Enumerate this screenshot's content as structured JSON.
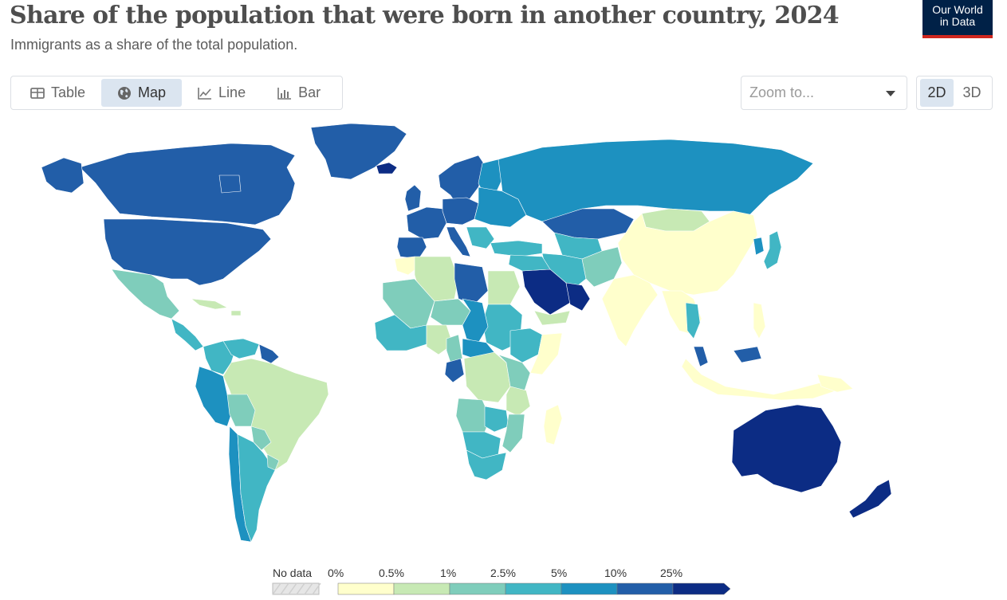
{
  "header": {
    "title": "Share of the population that were born in another country, 2024",
    "subtitle": "Immigrants as a share of the total population."
  },
  "logo": {
    "line1": "Our World",
    "line2": "in Data"
  },
  "tabs": [
    {
      "label": "Table",
      "icon": "table-icon",
      "active": false
    },
    {
      "label": "Map",
      "icon": "globe-icon",
      "active": true
    },
    {
      "label": "Line",
      "icon": "line-chart-icon",
      "active": false
    },
    {
      "label": "Bar",
      "icon": "bar-chart-icon",
      "active": false
    }
  ],
  "zoom": {
    "placeholder": "Zoom to..."
  },
  "projection": {
    "options": [
      "2D",
      "3D"
    ],
    "selected": "2D"
  },
  "legend": {
    "no_data_label": "No data",
    "bins": [
      "0%",
      "0.5%",
      "1%",
      "2.5%",
      "5%",
      "10%",
      "25%"
    ],
    "colors": [
      "#ffffcc",
      "#c7e9b4",
      "#7fcdbb",
      "#41b6c4",
      "#1d91c0",
      "#225ea8",
      "#0c2c84"
    ],
    "no_data_color": "#e6e6e6"
  },
  "regions": [
    {
      "name": "Canada",
      "bin": 5
    },
    {
      "name": "United States",
      "bin": 5
    },
    {
      "name": "Alaska",
      "bin": 5
    },
    {
      "name": "Greenland",
      "bin": 5
    },
    {
      "name": "Iceland",
      "bin": 6
    },
    {
      "name": "Mexico",
      "bin": 2
    },
    {
      "name": "Central America",
      "bin": 3
    },
    {
      "name": "Colombia",
      "bin": 3
    },
    {
      "name": "Venezuela",
      "bin": 3
    },
    {
      "name": "Guianas",
      "bin": 5
    },
    {
      "name": "Ecuador & Peru",
      "bin": 4
    },
    {
      "name": "Brazil",
      "bin": 1
    },
    {
      "name": "Bolivia",
      "bin": 2
    },
    {
      "name": "Paraguay",
      "bin": 2
    },
    {
      "name": "Chile",
      "bin": 4
    },
    {
      "name": "Argentina",
      "bin": 3
    },
    {
      "name": "Uruguay",
      "bin": 2
    },
    {
      "name": "Scandinavia",
      "bin": 5
    },
    {
      "name": "Finland",
      "bin": 4
    },
    {
      "name": "United Kingdom",
      "bin": 5
    },
    {
      "name": "Western Europe",
      "bin": 5
    },
    {
      "name": "Iberia",
      "bin": 5
    },
    {
      "name": "Italy",
      "bin": 5
    },
    {
      "name": "Central Europe",
      "bin": 5
    },
    {
      "name": "Eastern Europe",
      "bin": 4
    },
    {
      "name": "Balkans",
      "bin": 3
    },
    {
      "name": "Turkey",
      "bin": 3
    },
    {
      "name": "Russia",
      "bin": 4
    },
    {
      "name": "Kazakhstan",
      "bin": 5
    },
    {
      "name": "Mongolia",
      "bin": 1
    },
    {
      "name": "China",
      "bin": 0
    },
    {
      "name": "Japan",
      "bin": 3
    },
    {
      "name": "Korea",
      "bin": 4
    },
    {
      "name": "Central Asia",
      "bin": 3
    },
    {
      "name": "Iran",
      "bin": 3
    },
    {
      "name": "Afghanistan & Pakistan",
      "bin": 2
    },
    {
      "name": "India",
      "bin": 0
    },
    {
      "name": "Southeast Asia",
      "bin": 0
    },
    {
      "name": "Thailand",
      "bin": 3
    },
    {
      "name": "Malaysia",
      "bin": 5
    },
    {
      "name": "Indonesia",
      "bin": 0
    },
    {
      "name": "Philippines",
      "bin": 0
    },
    {
      "name": "Saudi Arabia",
      "bin": 6
    },
    {
      "name": "Oman & UAE",
      "bin": 6
    },
    {
      "name": "Yemen",
      "bin": 1
    },
    {
      "name": "Levant & Iraq",
      "bin": 3
    },
    {
      "name": "Morocco",
      "bin": 0
    },
    {
      "name": "Algeria",
      "bin": 1
    },
    {
      "name": "Libya",
      "bin": 5
    },
    {
      "name": "Egypt",
      "bin": 1
    },
    {
      "name": "Sudan",
      "bin": 3
    },
    {
      "name": "Chad",
      "bin": 4
    },
    {
      "name": "Mauritania & Mali",
      "bin": 2
    },
    {
      "name": "Niger",
      "bin": 2
    },
    {
      "name": "West Africa",
      "bin": 3
    },
    {
      "name": "Nigeria",
      "bin": 1
    },
    {
      "name": "Cameroon",
      "bin": 2
    },
    {
      "name": "Gabon",
      "bin": 5
    },
    {
      "name": "Central African Rep.",
      "bin": 4
    },
    {
      "name": "DR Congo",
      "bin": 1
    },
    {
      "name": "Ethiopia",
      "bin": 3
    },
    {
      "name": "Somalia",
      "bin": 0
    },
    {
      "name": "East Africa",
      "bin": 2
    },
    {
      "name": "Angola",
      "bin": 2
    },
    {
      "name": "Zambia",
      "bin": 3
    },
    {
      "name": "Tanzania",
      "bin": 1
    },
    {
      "name": "Mozambique",
      "bin": 2
    },
    {
      "name": "Namibia & Botswana",
      "bin": 3
    },
    {
      "name": "South Africa",
      "bin": 3
    },
    {
      "name": "Madagascar",
      "bin": 0
    },
    {
      "name": "Australia",
      "bin": 6
    },
    {
      "name": "New Zealand",
      "bin": 6
    },
    {
      "name": "Papua New Guinea",
      "bin": 0
    },
    {
      "name": "Cuba & Caribbean",
      "bin": 1
    }
  ]
}
